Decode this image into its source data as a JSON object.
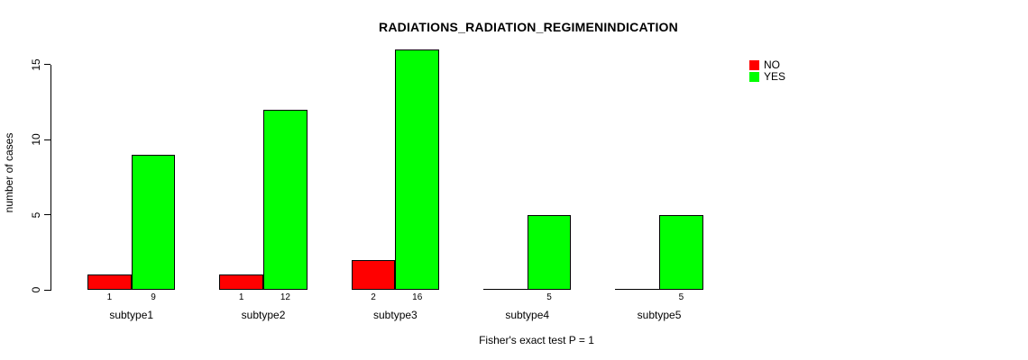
{
  "figure": {
    "background": "#ffffff",
    "text_color": "#000000"
  },
  "chart_data": {
    "type": "bar",
    "title": "RADIATIONS_RADIATION_REGIMENINDICATION",
    "ylabel": "number of cases",
    "annotation": "Fisher's exact test P = 1",
    "categories": [
      "subtype1",
      "subtype2",
      "subtype3",
      "subtype4",
      "subtype5"
    ],
    "series": [
      {
        "name": "NO",
        "color": "#ff0000",
        "values": [
          1,
          1,
          2,
          0,
          0
        ]
      },
      {
        "name": "YES",
        "color": "#00ff00",
        "values": [
          9,
          12,
          16,
          5,
          5
        ]
      }
    ],
    "bar_value_labels": [
      [
        "1",
        "9"
      ],
      [
        "1",
        "12"
      ],
      [
        "2",
        "16"
      ],
      [
        "",
        "5"
      ],
      [
        "",
        "5"
      ]
    ],
    "yticks": [
      "0",
      "5",
      "10",
      "15"
    ],
    "ytick_values": [
      0,
      5,
      10,
      15
    ],
    "ylim": [
      0,
      16
    ],
    "grid": false,
    "legend": {
      "position": "top-right",
      "entries": [
        {
          "label": "NO",
          "color": "#ff0000"
        },
        {
          "label": "YES",
          "color": "#00ff00"
        }
      ]
    }
  }
}
